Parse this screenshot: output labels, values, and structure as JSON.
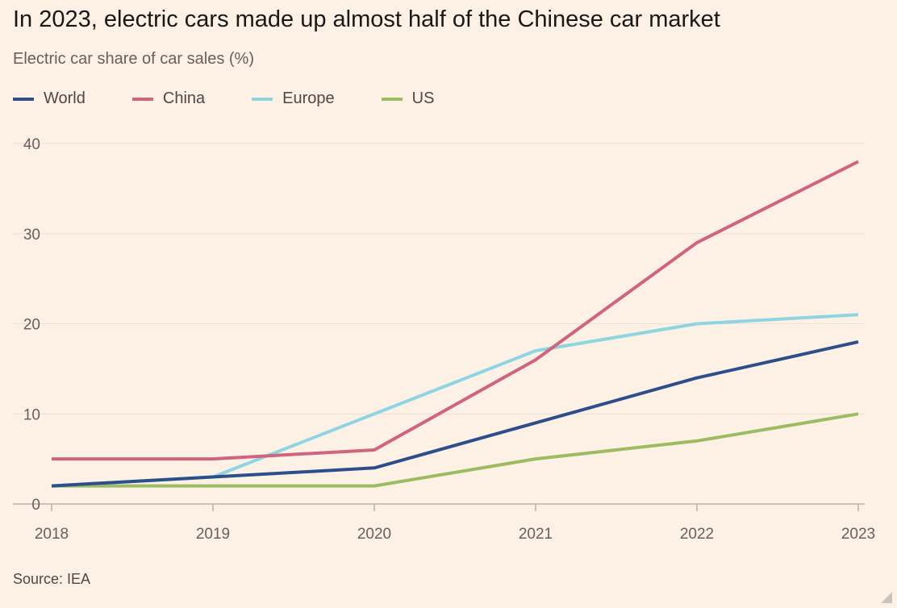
{
  "title": "In 2023, electric cars made up almost half of the Chinese car market",
  "subtitle": "Electric car share of car sales (%)",
  "source": "Source: IEA",
  "colors": {
    "background": "#fdf1e6",
    "gridline": "#e9dfd5",
    "axis": "#b8b1aa"
  },
  "chart_data": {
    "type": "line",
    "title": "In 2023, electric cars made up almost half of the Chinese car market",
    "subtitle": "Electric car share of car sales (%)",
    "xlabel": "",
    "ylabel": "",
    "x": [
      2018,
      2019,
      2020,
      2021,
      2022,
      2023
    ],
    "x_tick_labels": [
      "2018",
      "2019",
      "2020",
      "2021",
      "2022",
      "2023"
    ],
    "y_ticks": [
      0,
      10,
      20,
      30,
      40
    ],
    "y_tick_labels": [
      "0",
      "10",
      "20",
      "30",
      "40"
    ],
    "ylim": [
      0,
      40
    ],
    "grid": true,
    "legend_position": "top-left",
    "series": [
      {
        "name": "World",
        "color": "#2c4f8c",
        "values": [
          2,
          3,
          4,
          9,
          14,
          18
        ]
      },
      {
        "name": "China",
        "color": "#d0647e",
        "values": [
          5,
          5,
          6,
          16,
          29,
          38
        ]
      },
      {
        "name": "Europe",
        "color": "#8dd5e3",
        "values": [
          2,
          3,
          10,
          17,
          20,
          21
        ]
      },
      {
        "name": "US",
        "color": "#9cbb62",
        "values": [
          2,
          2,
          2,
          5,
          7,
          10
        ]
      }
    ],
    "draw_order": [
      "US",
      "Europe",
      "China",
      "World"
    ]
  }
}
